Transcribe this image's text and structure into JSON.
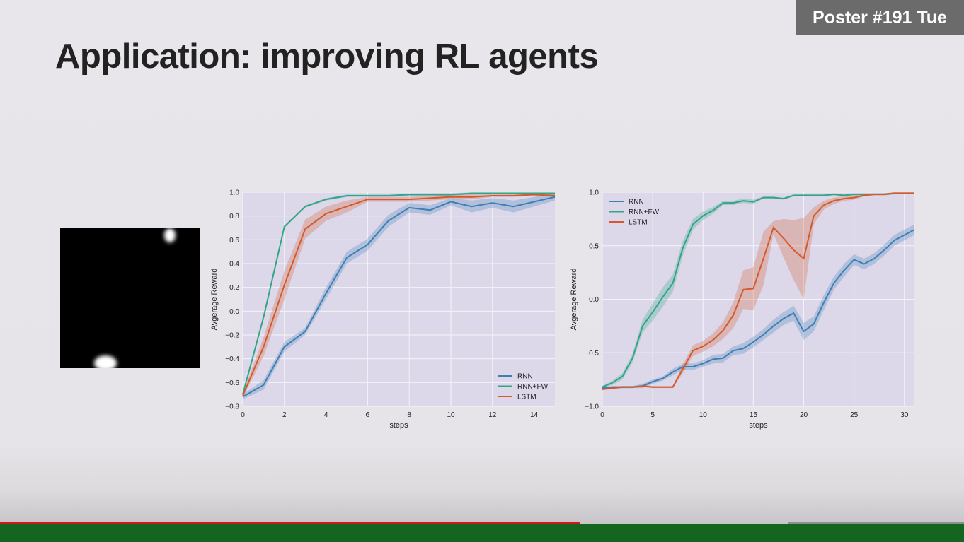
{
  "badge": "Poster #191 Tue",
  "title": "Application: improving RL agents",
  "colors": {
    "RNN": "#3f7fb2",
    "RNN+FW": "#33a585",
    "LSTM": "#d5592c",
    "plot_bg": "#dcd8ea",
    "grid": "#f4f3f8"
  },
  "progress": {
    "played_fraction": 0.601,
    "buffered_fraction": 0.818
  },
  "chart_data": [
    {
      "type": "line",
      "xlabel": "steps",
      "ylabel": "Avgerage Reward",
      "xlim": [
        0,
        15
      ],
      "ylim": [
        -0.8,
        1.0
      ],
      "xticks": [
        0,
        2,
        4,
        6,
        8,
        10,
        12,
        14
      ],
      "yticks": [
        -0.8,
        -0.6,
        -0.4,
        -0.2,
        0.0,
        0.2,
        0.4,
        0.6,
        0.8,
        1.0
      ],
      "ytick_labels": [
        "−0.8",
        "−0.6",
        "−0.4",
        "−0.2",
        "0.0",
        "0.2",
        "0.4",
        "0.6",
        "0.8",
        "1.0"
      ],
      "legend": "bottom-right",
      "grid": true,
      "x": [
        0,
        1,
        2,
        3,
        4,
        5,
        6,
        7,
        8,
        9,
        10,
        11,
        12,
        13,
        14,
        15
      ],
      "series": [
        {
          "name": "RNN",
          "values": [
            -0.72,
            -0.62,
            -0.3,
            -0.17,
            0.15,
            0.45,
            0.56,
            0.76,
            0.87,
            0.85,
            0.92,
            0.88,
            0.91,
            0.88,
            0.92,
            0.96
          ],
          "band": [
            0.02,
            0.04,
            0.04,
            0.03,
            0.05,
            0.05,
            0.05,
            0.05,
            0.04,
            0.04,
            0.03,
            0.05,
            0.04,
            0.05,
            0.04,
            0.03
          ]
        },
        {
          "name": "RNN+FW",
          "values": [
            -0.7,
            -0.05,
            0.71,
            0.88,
            0.94,
            0.97,
            0.97,
            0.97,
            0.98,
            0.98,
            0.98,
            0.99,
            0.99,
            0.99,
            0.99,
            0.99
          ],
          "band": [
            0.01,
            0.01,
            0.01,
            0.01,
            0.01,
            0.01,
            0.01,
            0.01,
            0.01,
            0.01,
            0.01,
            0.01,
            0.01,
            0.01,
            0.01,
            0.01
          ]
        },
        {
          "name": "LSTM",
          "values": [
            -0.71,
            -0.3,
            0.22,
            0.69,
            0.82,
            0.88,
            0.94,
            0.94,
            0.94,
            0.95,
            0.96,
            0.96,
            0.97,
            0.97,
            0.98,
            0.97
          ],
          "band": [
            0.02,
            0.08,
            0.12,
            0.08,
            0.06,
            0.05,
            0.02,
            0.02,
            0.02,
            0.02,
            0.02,
            0.02,
            0.01,
            0.01,
            0.01,
            0.01
          ]
        }
      ]
    },
    {
      "type": "line",
      "xlabel": "steps",
      "ylabel": "Avgerage Reward",
      "xlim": [
        0,
        31
      ],
      "ylim": [
        -1.0,
        1.0
      ],
      "xticks": [
        0,
        5,
        10,
        15,
        20,
        25,
        30
      ],
      "yticks": [
        -1.0,
        -0.5,
        0.0,
        0.5,
        1.0
      ],
      "ytick_labels": [
        "−1.0",
        "−0.5",
        "0.0",
        "0.5",
        "1.0"
      ],
      "legend": "top-left",
      "grid": true,
      "x": [
        0,
        1,
        2,
        3,
        4,
        5,
        6,
        7,
        8,
        9,
        10,
        11,
        12,
        13,
        14,
        15,
        16,
        17,
        18,
        19,
        20,
        21,
        22,
        23,
        24,
        25,
        26,
        27,
        28,
        29,
        30,
        31
      ],
      "series": [
        {
          "name": "RNN",
          "values": [
            -0.83,
            -0.82,
            -0.82,
            -0.82,
            -0.81,
            -0.77,
            -0.74,
            -0.68,
            -0.63,
            -0.63,
            -0.6,
            -0.56,
            -0.55,
            -0.48,
            -0.46,
            -0.4,
            -0.33,
            -0.25,
            -0.18,
            -0.13,
            -0.3,
            -0.23,
            -0.03,
            0.15,
            0.27,
            0.37,
            0.33,
            0.38,
            0.46,
            0.55,
            0.6,
            0.65
          ],
          "band": [
            0.01,
            0.01,
            0.01,
            0.01,
            0.02,
            0.02,
            0.02,
            0.03,
            0.03,
            0.03,
            0.03,
            0.04,
            0.04,
            0.04,
            0.05,
            0.05,
            0.05,
            0.06,
            0.06,
            0.07,
            0.08,
            0.07,
            0.07,
            0.06,
            0.06,
            0.05,
            0.05,
            0.05,
            0.05,
            0.05,
            0.05,
            0.05
          ]
        },
        {
          "name": "RNN+FW",
          "values": [
            -0.82,
            -0.78,
            -0.72,
            -0.55,
            -0.25,
            -0.12,
            0.02,
            0.15,
            0.48,
            0.7,
            0.78,
            0.83,
            0.9,
            0.9,
            0.92,
            0.91,
            0.95,
            0.95,
            0.94,
            0.97,
            0.97,
            0.97,
            0.97,
            0.98,
            0.97,
            0.98,
            0.98,
            0.98,
            0.98,
            0.99,
            0.99,
            0.99
          ],
          "band": [
            0.01,
            0.02,
            0.03,
            0.04,
            0.06,
            0.08,
            0.09,
            0.08,
            0.07,
            0.05,
            0.04,
            0.03,
            0.02,
            0.02,
            0.02,
            0.02,
            0.01,
            0.01,
            0.01,
            0.01,
            0.01,
            0.01,
            0.01,
            0.01,
            0.01,
            0.01,
            0.01,
            0.01,
            0.01,
            0.01,
            0.01,
            0.01
          ]
        },
        {
          "name": "LSTM",
          "values": [
            -0.84,
            -0.83,
            -0.82,
            -0.82,
            -0.81,
            -0.82,
            -0.82,
            -0.82,
            -0.65,
            -0.48,
            -0.44,
            -0.38,
            -0.29,
            -0.15,
            0.09,
            0.1,
            0.38,
            0.67,
            0.57,
            0.46,
            0.38,
            0.78,
            0.88,
            0.92,
            0.94,
            0.95,
            0.97,
            0.98,
            0.98,
            0.99,
            0.99,
            0.99
          ],
          "band": [
            0.01,
            0.01,
            0.01,
            0.01,
            0.01,
            0.01,
            0.01,
            0.01,
            0.04,
            0.05,
            0.05,
            0.06,
            0.08,
            0.12,
            0.18,
            0.2,
            0.25,
            0.06,
            0.18,
            0.28,
            0.38,
            0.08,
            0.04,
            0.03,
            0.02,
            0.02,
            0.01,
            0.01,
            0.01,
            0.01,
            0.01,
            0.01
          ]
        }
      ]
    }
  ]
}
